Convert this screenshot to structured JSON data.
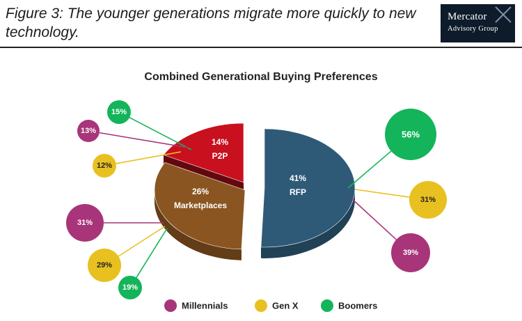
{
  "header": {
    "figure_title": "Figure 3: The younger generations migrate more quickly to new technology.",
    "logo_line1": "Mercator",
    "logo_line2": "Advisory Group"
  },
  "colors": {
    "rfp": "#2e5a78",
    "marketplaces": "#8a5520",
    "p2p": "#c8101e",
    "millennials": "#a8357a",
    "genx": "#e8c020",
    "boomers": "#14b45a"
  },
  "chart_data": {
    "type": "pie",
    "title": "Combined Generational Buying Preferences",
    "slices": [
      {
        "label": "RFP",
        "value": 41,
        "value_label": "41%"
      },
      {
        "label": "Marketplaces",
        "value": 26,
        "value_label": "26%"
      },
      {
        "label": "P2P",
        "value": 14,
        "value_label": "14%"
      }
    ],
    "breakdown": {
      "RFP": {
        "Millennials": 39,
        "Gen X": 31,
        "Boomers": 56
      },
      "Marketplaces": {
        "Millennials": 31,
        "Gen X": 29,
        "Boomers": 19
      },
      "P2P": {
        "Millennials": 13,
        "Gen X": 12,
        "Boomers": 15
      }
    },
    "legend": [
      "Millennials",
      "Gen X",
      "Boomers"
    ],
    "legend_position": "bottom"
  }
}
